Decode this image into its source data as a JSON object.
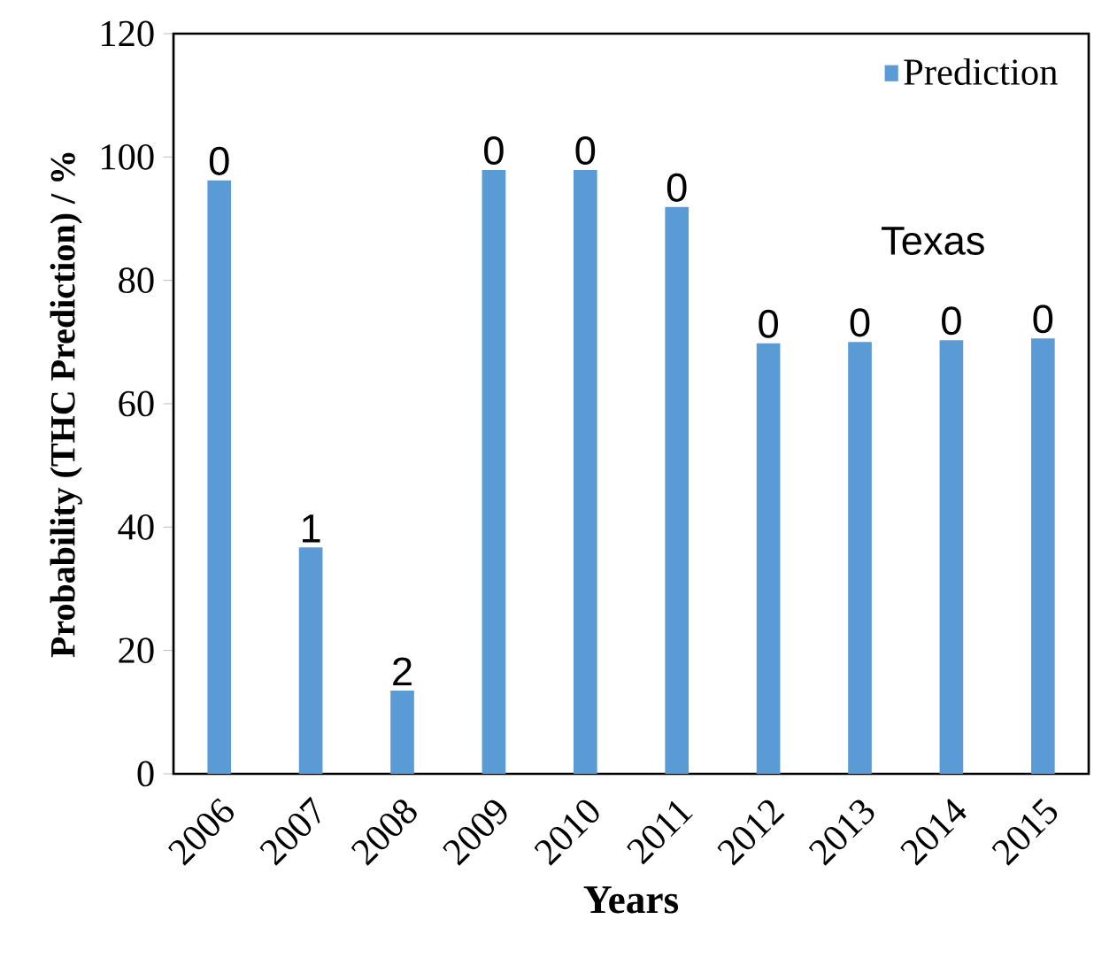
{
  "chart_data": {
    "type": "bar",
    "xlabel": "Years",
    "ylabel": "Probability (THC Prediction) / %",
    "categories": [
      "2006",
      "2007",
      "2008",
      "2009",
      "2010",
      "2011",
      "2012",
      "2013",
      "2014",
      "2015"
    ],
    "series": [
      {
        "name": "Prediction",
        "color": "#5b9bd5",
        "values": [
          96.2,
          36.7,
          13.5,
          97.9,
          97.9,
          91.9,
          69.8,
          70.0,
          70.3,
          70.6
        ]
      }
    ],
    "ylim": [
      0,
      120
    ],
    "yticks": [
      0,
      20,
      40,
      60,
      80,
      100,
      120
    ],
    "legend": "top right",
    "annotations": [
      "Texas",
      {
        "text": "0",
        "x": "2006",
        "y": 96.2
      },
      {
        "text": "1",
        "x": "2007",
        "y": 36.7
      },
      {
        "text": "2",
        "x": "2008",
        "y": 13.5
      },
      {
        "text": "0",
        "x": "2009",
        "y": 97.9
      },
      {
        "text": "0",
        "x": "2010",
        "y": 97.9
      },
      {
        "text": "0",
        "x": "2011",
        "y": 91.9
      },
      {
        "text": "0",
        "x": "2012",
        "y": 69.8
      },
      {
        "text": "0",
        "x": "2013",
        "y": 70.0
      },
      {
        "text": "0",
        "x": "2014",
        "y": 70.3
      },
      {
        "text": "0",
        "x": "2015",
        "y": 70.6
      }
    ]
  }
}
